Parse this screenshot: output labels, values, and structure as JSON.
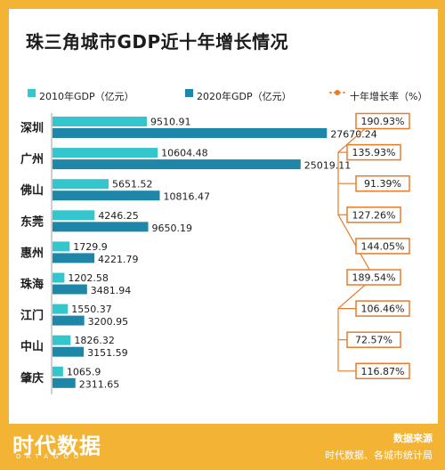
{
  "title": "珠三角城市GDP近十年增长情况",
  "legend": {
    "gdp2010": "2010年GDP（亿元）",
    "gdp2020": "2020年GDP（亿元）",
    "rate": "十年增长率（%）"
  },
  "colors": {
    "gdp2010": "#33c6cc",
    "gdp2020": "#1e87a8",
    "rate": "#e87b2a"
  },
  "footer": {
    "logo": "时代数据",
    "logo_sub": "DATAGOO",
    "source_title": "数据来源",
    "source_text": "时代数据、各城市统计局"
  },
  "chart_data": {
    "type": "bar",
    "title": "珠三角城市GDP近十年增长情况",
    "orientation": "horizontal",
    "categories": [
      "深圳",
      "广州",
      "佛山",
      "东莞",
      "惠州",
      "珠海",
      "江门",
      "中山",
      "肇庆"
    ],
    "series": [
      {
        "name": "2010年GDP（亿元）",
        "values": [
          9510.91,
          10604.48,
          5651.52,
          4246.25,
          1729.9,
          1202.58,
          1550.37,
          1826.32,
          1065.9
        ],
        "labels": [
          "9510.91",
          "10604.48",
          "5651.52",
          "4246.25",
          "1729.9",
          "1202.58",
          "1550.37",
          "1826.32",
          "1065.9"
        ]
      },
      {
        "name": "2020年GDP（亿元）",
        "values": [
          27670.24,
          25019.11,
          10816.47,
          9650.19,
          4221.79,
          3481.94,
          3200.95,
          3151.59,
          2311.65
        ],
        "labels": [
          "27670.24",
          "25019.11",
          "10816.47",
          "9650.19",
          "4221.79",
          "3481.94",
          "3200.95",
          "3151.59",
          "2311.65"
        ]
      },
      {
        "name": "十年增长率（%）",
        "values": [
          190.93,
          135.93,
          91.39,
          127.26,
          144.05,
          189.54,
          106.46,
          72.57,
          116.87
        ],
        "labels": [
          "190.93%",
          "135.93%",
          "91.39%",
          "127.26%",
          "144.05%",
          "189.54%",
          "106.46%",
          "72.57%",
          "116.87%"
        ]
      }
    ]
  }
}
